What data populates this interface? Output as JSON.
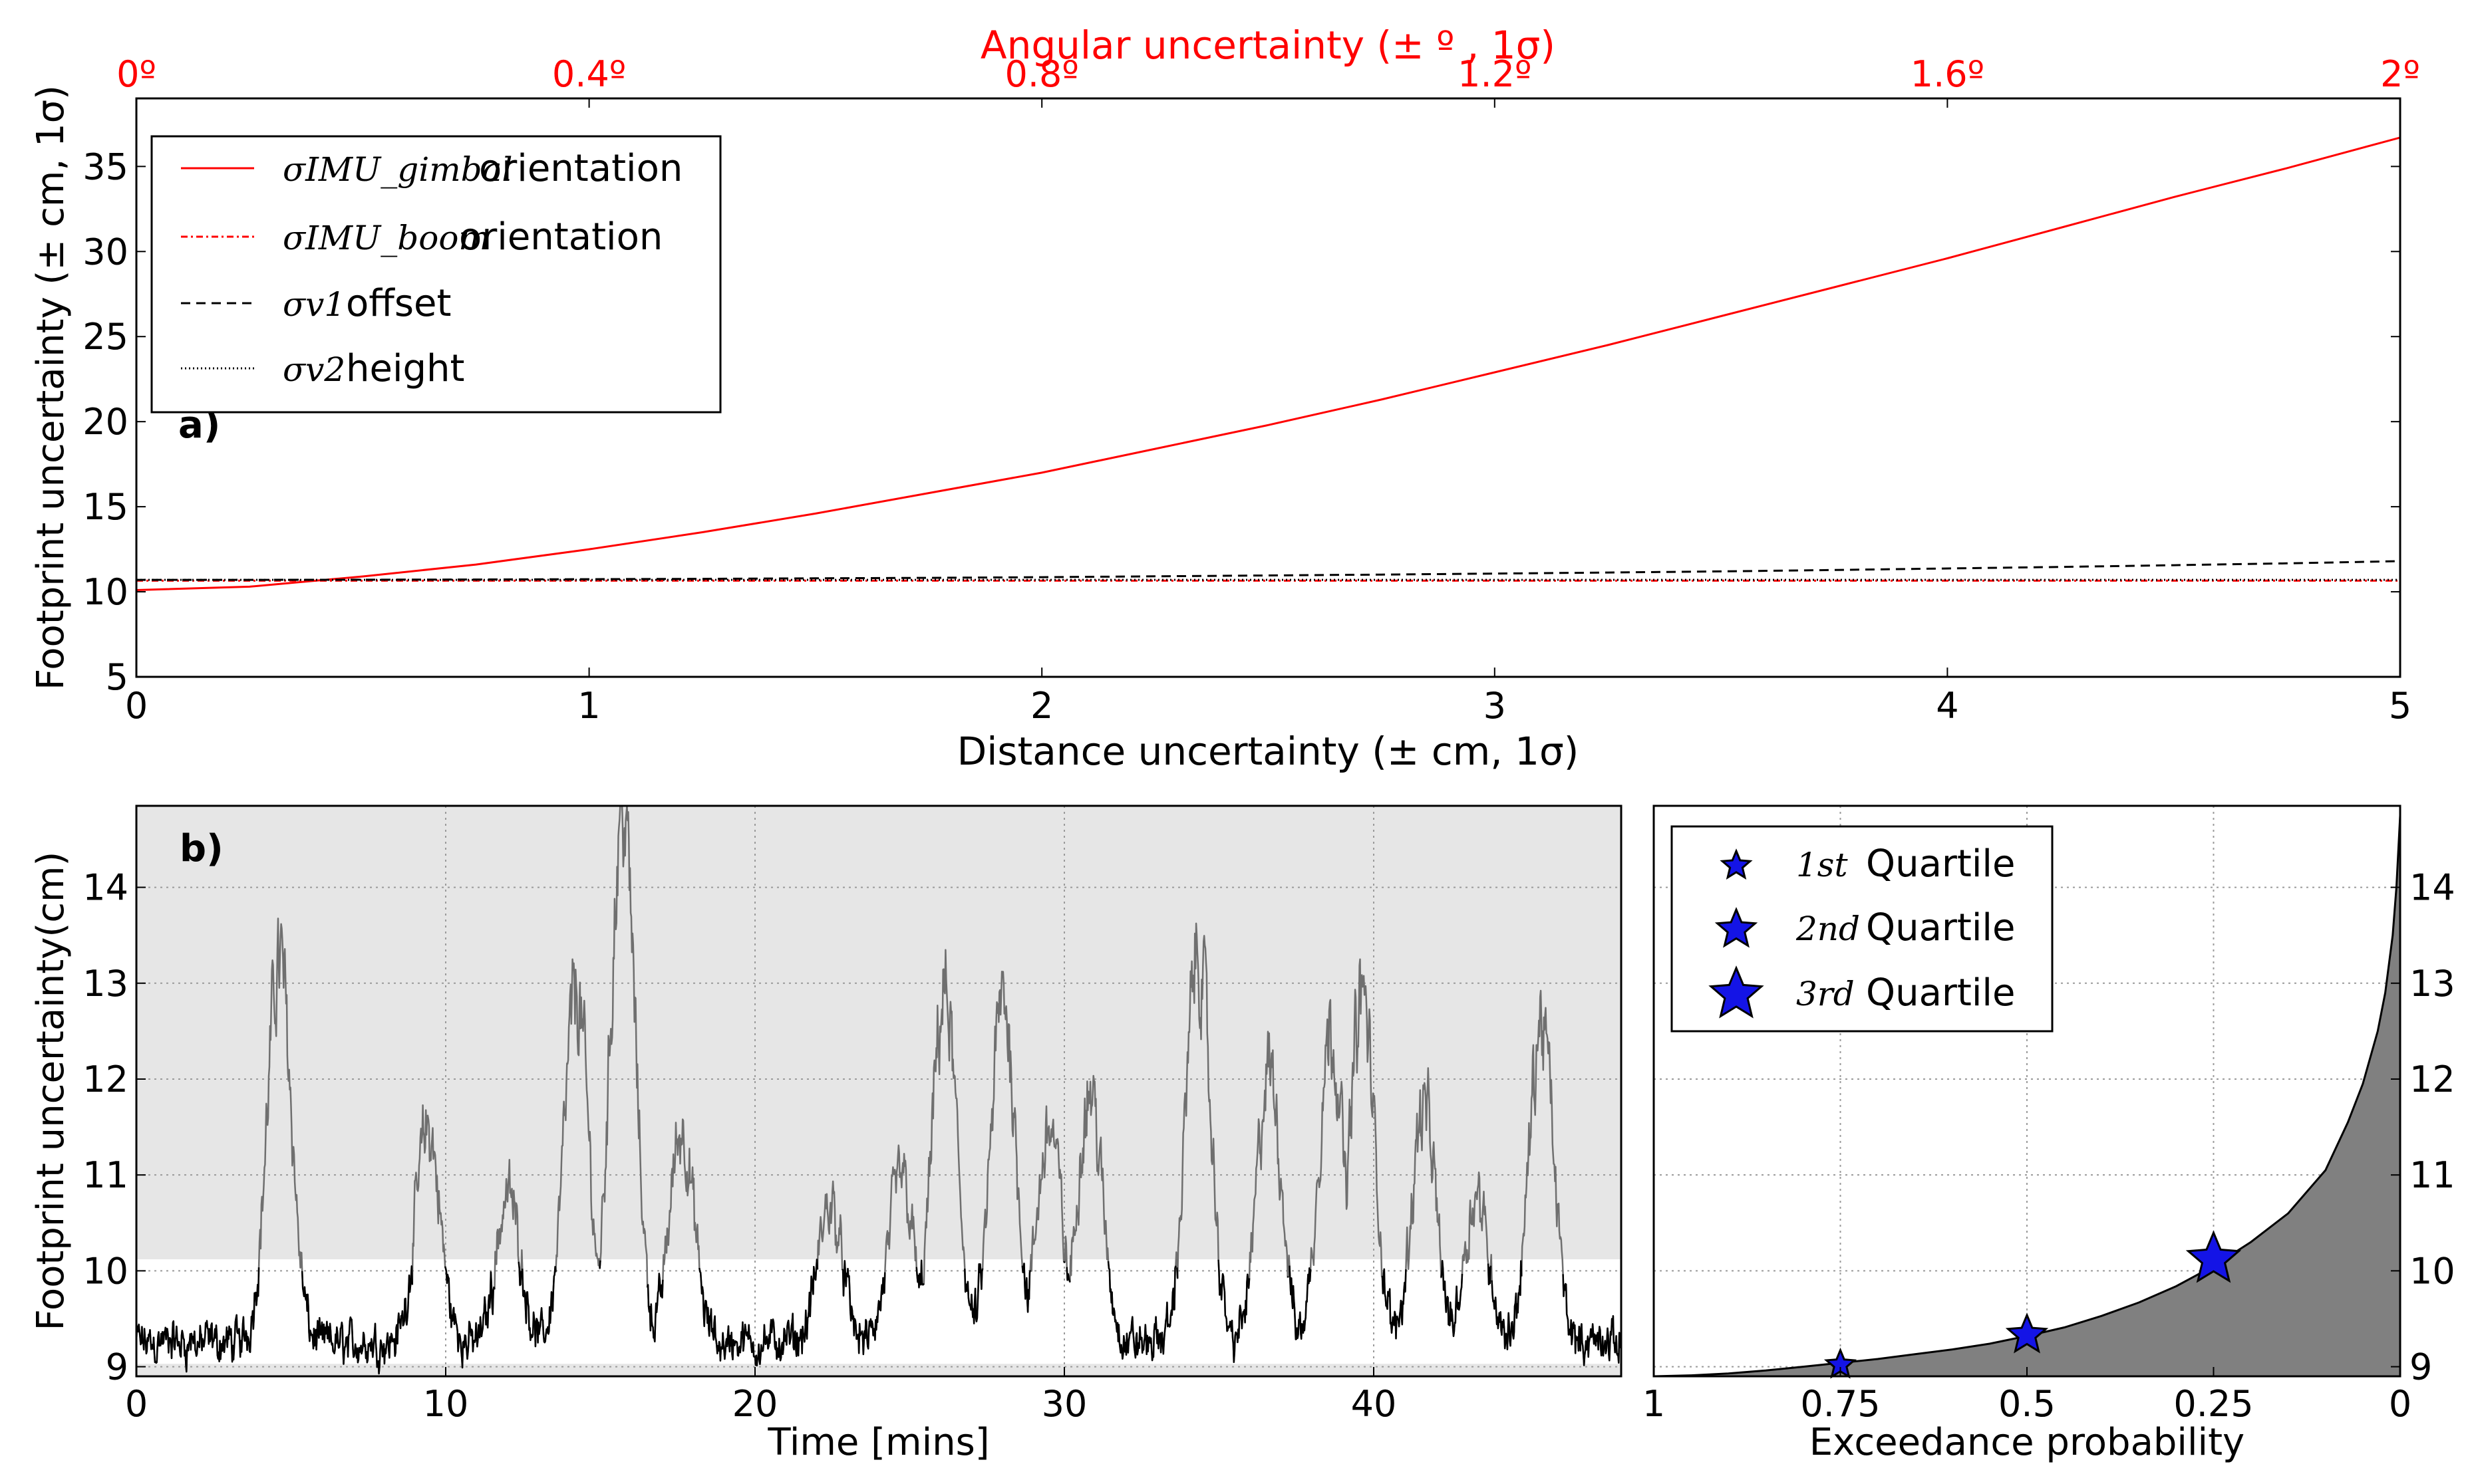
{
  "colors": {
    "red": "#ff0000",
    "black": "#000000",
    "grey_line": "#6f6f6f",
    "grey_fill": "#808080",
    "band": "#e6e6e6",
    "marker": "#1414e6"
  },
  "chart_data": [
    {
      "id": "a",
      "type": "line",
      "panel_label": "a)",
      "xlabel": "Distance uncertainty (± cm, 1σ)",
      "ylabel": "Footprint uncertainty (± cm, 1σ)",
      "top_xlabel": "Angular uncertainty (± º , 1σ)",
      "xlim": [
        0,
        5
      ],
      "ylim": [
        5,
        39
      ],
      "x_ticks": [
        "0",
        "1",
        "2",
        "3",
        "4",
        "5"
      ],
      "y_ticks": [
        "5",
        "10",
        "15",
        "20",
        "25",
        "30",
        "35"
      ],
      "top_ticks": [
        "0º",
        "0.4º",
        "0.8º",
        "1.2º",
        "1.6º",
        "2º"
      ],
      "x": [
        0,
        0.25,
        0.5,
        0.75,
        1,
        1.25,
        1.5,
        1.75,
        2,
        2.25,
        2.5,
        2.75,
        3,
        3.25,
        3.5,
        3.75,
        4,
        4.25,
        4.5,
        4.75,
        5
      ],
      "series": [
        {
          "name": "σIMU_gimbal",
          "suffix": "orientation",
          "style": "solid",
          "color": "#ff0000",
          "values": [
            10.1,
            10.3,
            10.9,
            11.6,
            12.5,
            13.5,
            14.6,
            15.8,
            17.0,
            18.4,
            19.8,
            21.3,
            22.9,
            24.5,
            26.2,
            27.9,
            29.6,
            31.4,
            33.2,
            34.9,
            36.7
          ]
        },
        {
          "name": "σIMU_boom",
          "suffix": "orientation",
          "style": "dashdot",
          "color": "#ff0000",
          "values": [
            10.65,
            10.65,
            10.65,
            10.65,
            10.65,
            10.65,
            10.65,
            10.65,
            10.65,
            10.65,
            10.65,
            10.65,
            10.65,
            10.65,
            10.65,
            10.65,
            10.65,
            10.65,
            10.65,
            10.65,
            10.65
          ]
        },
        {
          "name": "σv1",
          "suffix": "offset",
          "style": "dashed",
          "color": "#000000",
          "values": [
            10.7,
            10.7,
            10.71,
            10.72,
            10.74,
            10.76,
            10.79,
            10.82,
            10.86,
            10.91,
            10.96,
            11.01,
            11.07,
            11.13,
            11.2,
            11.28,
            11.37,
            11.46,
            11.56,
            11.67,
            11.8
          ]
        },
        {
          "name": "σv2",
          "suffix": "height",
          "style": "dotted",
          "color": "#000000",
          "values": [
            10.7,
            10.7,
            10.7,
            10.7,
            10.7,
            10.7,
            10.7,
            10.7,
            10.7,
            10.7,
            10.7,
            10.7,
            10.7,
            10.7,
            10.7,
            10.7,
            10.7,
            10.7,
            10.7,
            10.7,
            10.7
          ]
        }
      ]
    },
    {
      "id": "b",
      "type": "line",
      "panel_label": "b)",
      "xlabel": "Time [mins]",
      "ylabel": "Footprint uncertainty(cm)",
      "xlim": [
        0,
        48
      ],
      "ylim": [
        8.9,
        14.85
      ],
      "x_ticks": [
        "0",
        "10",
        "20",
        "30",
        "40"
      ],
      "y_ticks": [
        "9",
        "10",
        "11",
        "12",
        "13",
        "14"
      ],
      "band_upper_start": 10.12,
      "band_lower": [
        8.9,
        9.03
      ],
      "peaks": [
        {
          "t": 4.6,
          "h": 13.25
        },
        {
          "t": 9.4,
          "h": 11.5
        },
        {
          "t": 12.0,
          "h": 10.8
        },
        {
          "t": 14.2,
          "h": 12.9
        },
        {
          "t": 15.7,
          "h": 14.85
        },
        {
          "t": 17.6,
          "h": 11.5
        },
        {
          "t": 22.4,
          "h": 10.7
        },
        {
          "t": 24.7,
          "h": 11.0
        },
        {
          "t": 26.1,
          "h": 12.9
        },
        {
          "t": 28.0,
          "h": 12.85
        },
        {
          "t": 29.5,
          "h": 11.5
        },
        {
          "t": 30.8,
          "h": 11.9
        },
        {
          "t": 34.3,
          "h": 13.35
        },
        {
          "t": 36.6,
          "h": 12.1
        },
        {
          "t": 38.6,
          "h": 12.55
        },
        {
          "t": 39.6,
          "h": 12.9
        },
        {
          "t": 41.6,
          "h": 11.7
        },
        {
          "t": 43.3,
          "h": 10.8
        },
        {
          "t": 45.4,
          "h": 12.6
        }
      ]
    },
    {
      "id": "c",
      "type": "area",
      "xlabel": "Exceedance probability",
      "xlim": [
        1,
        0
      ],
      "ylim": [
        8.9,
        14.85
      ],
      "x_ticks": [
        "1",
        "0.75",
        "0.5",
        "0.25",
        "0"
      ],
      "y_ticks": [
        "9",
        "10",
        "11",
        "12",
        "13",
        "14"
      ],
      "x": [
        1.0,
        0.95,
        0.9,
        0.85,
        0.8,
        0.75,
        0.7,
        0.65,
        0.6,
        0.55,
        0.5,
        0.45,
        0.4,
        0.35,
        0.3,
        0.25,
        0.2,
        0.15,
        0.1,
        0.07,
        0.05,
        0.03,
        0.02,
        0.01,
        0.005,
        0.0
      ],
      "values": [
        8.9,
        8.91,
        8.93,
        8.96,
        9.0,
        9.04,
        9.08,
        9.13,
        9.18,
        9.24,
        9.32,
        9.41,
        9.53,
        9.67,
        9.84,
        10.05,
        10.3,
        10.6,
        11.05,
        11.55,
        11.95,
        12.5,
        12.9,
        13.5,
        14.0,
        14.75
      ],
      "quartiles": [
        {
          "label": "1st",
          "suffix": "Quartile",
          "p": 0.75,
          "value": 9.02,
          "size": "small"
        },
        {
          "label": "2nd",
          "suffix": "Quartile",
          "p": 0.5,
          "value": 9.33,
          "size": "medium"
        },
        {
          "label": "3rd",
          "suffix": "Quartile",
          "p": 0.25,
          "value": 10.12,
          "size": "large"
        }
      ]
    }
  ]
}
